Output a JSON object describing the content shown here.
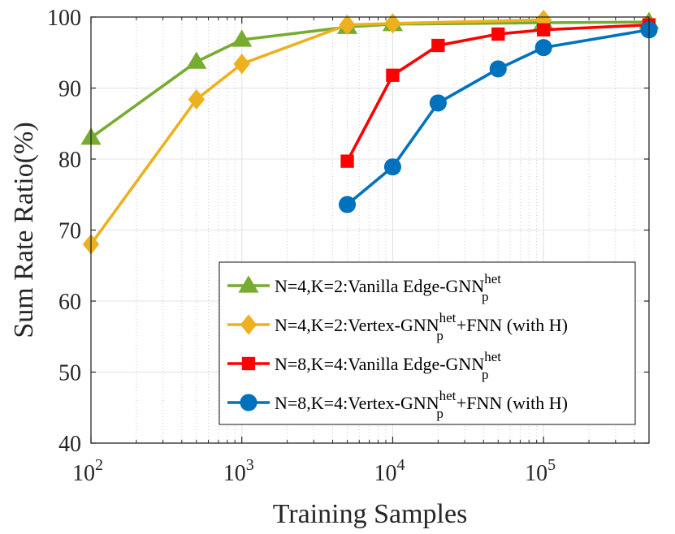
{
  "chart_data": {
    "type": "line",
    "x_scale": "log",
    "xlim": [
      100,
      500000
    ],
    "ylim": [
      40,
      100
    ],
    "xlabel": "Training Samples",
    "ylabel": "Sum Rate Ratio(%)",
    "grid": true,
    "legend_position": "bottom-right",
    "x_ticks": [
      {
        "value": 100,
        "base": "10",
        "exp": "2"
      },
      {
        "value": 1000,
        "base": "10",
        "exp": "3"
      },
      {
        "value": 10000,
        "base": "10",
        "exp": "4"
      },
      {
        "value": 100000,
        "base": "10",
        "exp": "5"
      }
    ],
    "y_ticks": [
      40,
      50,
      60,
      70,
      80,
      90,
      100
    ],
    "series": [
      {
        "name": "N=4,K=2:Vanilla Edge-GNN_p^het",
        "legend": {
          "prefix": "N=4,K=2:Vanilla Edge-GNN",
          "sup": "het",
          "sub": "p",
          "suffix": ""
        },
        "color": "#77AC30",
        "marker": "triangle",
        "x": [
          100,
          500,
          1000,
          5000,
          10000,
          100000,
          500000
        ],
        "y": [
          83.0,
          93.7,
          96.8,
          98.6,
          99.0,
          99.2,
          99.3
        ]
      },
      {
        "name": "N=4,K=2:Vertex-GNN_p^het+FNN (with H)",
        "legend": {
          "prefix": "N=4,K=2:Vertex-GNN",
          "sup": "het",
          "sub": "p",
          "suffix": "+FNN (with H)"
        },
        "color": "#EDB120",
        "marker": "diamond",
        "x": [
          100,
          500,
          1000,
          5000,
          10000,
          100000
        ],
        "y": [
          68.0,
          88.4,
          93.4,
          98.9,
          99.1,
          99.6
        ]
      },
      {
        "name": "N=8,K=4:Vanilla Edge-GNN_p^het",
        "legend": {
          "prefix": "N=8,K=4:Vanilla Edge-GNN",
          "sup": "het",
          "sub": "p",
          "suffix": ""
        },
        "color": "#FF0000",
        "marker": "square",
        "x": [
          5000,
          10000,
          20000,
          50000,
          100000,
          500000
        ],
        "y": [
          79.7,
          91.8,
          96.0,
          97.6,
          98.2,
          98.9
        ]
      },
      {
        "name": "N=8,K=4:Vertex-GNN_p^het+FNN (with H)",
        "legend": {
          "prefix": "N=8,K=4:Vertex-GNN",
          "sup": "het",
          "sub": "p",
          "suffix": "+FNN (with H)"
        },
        "color": "#0072BD",
        "marker": "circle",
        "x": [
          5000,
          10000,
          20000,
          50000,
          100000,
          500000
        ],
        "y": [
          73.6,
          78.9,
          87.9,
          92.7,
          95.7,
          98.2
        ]
      }
    ]
  }
}
